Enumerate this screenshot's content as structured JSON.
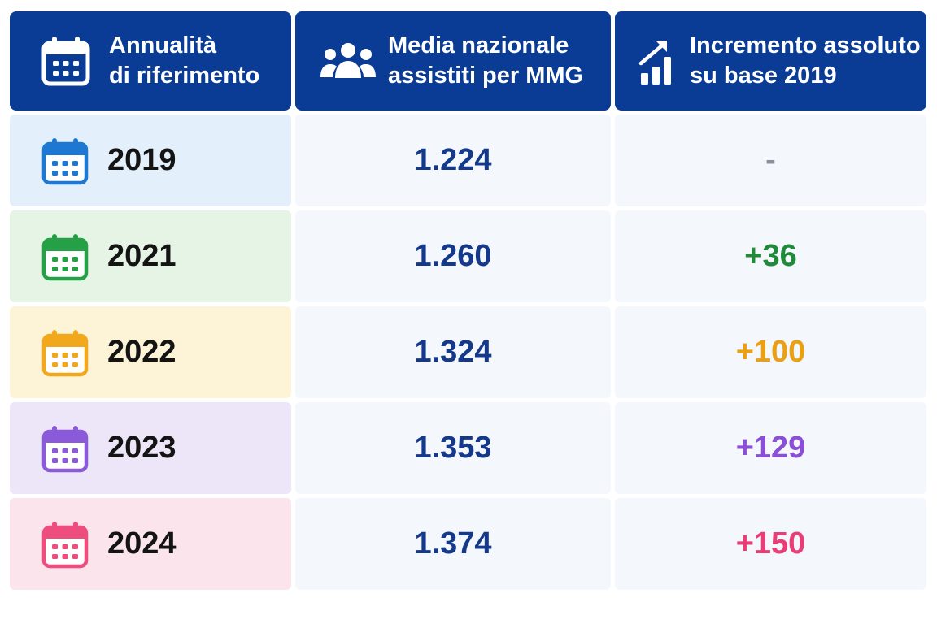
{
  "header": {
    "col1_line1": "Annualità",
    "col1_line2": "di riferimento",
    "col2_line1": "Media nazionale",
    "col2_line2": "assistiti per MMG",
    "col3_line1": "Incremento assoluto",
    "col3_line2": "su base 2019",
    "icons": [
      "calendar-icon",
      "users-icon",
      "growth-chart-icon"
    ],
    "background": "#0a3c96"
  },
  "rows": [
    {
      "year": "2019",
      "media": "1.224",
      "incremento": "-",
      "accent": "#1e78d2",
      "bg": "#e3f0fc",
      "inc_color": "#8a8f99"
    },
    {
      "year": "2021",
      "media": "1.260",
      "incremento": "+36",
      "accent": "#26a046",
      "bg": "#e5f4e4",
      "inc_color": "#1e8a3a"
    },
    {
      "year": "2022",
      "media": "1.324",
      "incremento": "+100",
      "accent": "#f2a81c",
      "bg": "#fdf4d8",
      "inc_color": "#eba014"
    },
    {
      "year": "2023",
      "media": "1.353",
      "incremento": "+129",
      "accent": "#8a5ad8",
      "bg": "#ede6f8",
      "inc_color": "#8a4fd6"
    },
    {
      "year": "2024",
      "media": "1.374",
      "incremento": "+150",
      "accent": "#ee4e7e",
      "bg": "#fce4ec",
      "inc_color": "#e83e76"
    }
  ],
  "colors": {
    "media_text": "#14388a",
    "value_cell_bg": "#f4f7fc"
  }
}
